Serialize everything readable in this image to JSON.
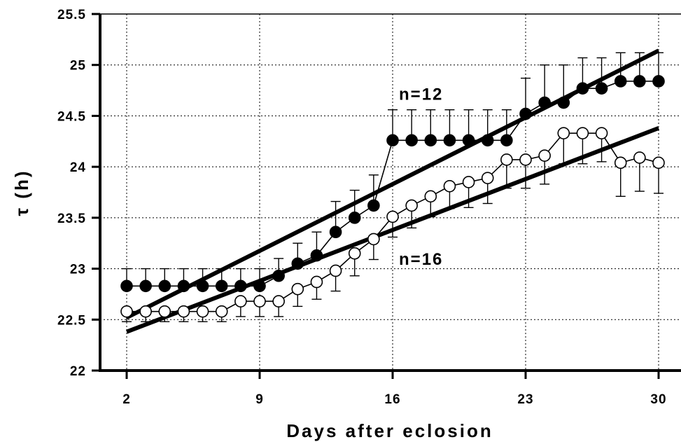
{
  "chart_data": {
    "type": "line",
    "title": "",
    "xlabel": "Days after eclosion",
    "ylabel": "τ (h)",
    "xlim": [
      0,
      32
    ],
    "ylim": [
      22,
      25.5
    ],
    "x_ticks": [
      2,
      9,
      16,
      23,
      30
    ],
    "x_tick_labels": [
      "2",
      "9",
      "16",
      "23",
      "30"
    ],
    "y_ticks": [
      22,
      22.5,
      23,
      23.5,
      24,
      24.5,
      25,
      25.5
    ],
    "y_tick_labels": [
      "22",
      "22.5",
      "23",
      "23.5",
      "24",
      "24.5",
      "25",
      "25.5"
    ],
    "grid": true,
    "annotations": [
      {
        "text": "n=12",
        "x": 17.5,
        "y": 24.72
      },
      {
        "text": "n=16",
        "x": 17.5,
        "y": 23.1
      }
    ],
    "series": [
      {
        "marker": "filled-circle",
        "x": [
          2,
          3,
          4,
          5,
          6,
          7,
          8,
          9,
          10,
          11,
          12,
          13,
          14,
          15,
          16,
          17,
          18,
          19,
          20,
          21,
          22,
          23,
          24,
          25,
          26,
          27,
          28,
          29,
          30
        ],
        "values": [
          22.83,
          22.83,
          22.83,
          22.83,
          22.83,
          22.83,
          22.83,
          22.83,
          22.93,
          23.05,
          23.13,
          23.36,
          23.5,
          23.62,
          24.26,
          24.26,
          24.26,
          24.26,
          24.26,
          24.26,
          24.26,
          24.52,
          24.63,
          24.63,
          24.77,
          24.77,
          24.84,
          24.84,
          24.84
        ],
        "error_upper": [
          0.17,
          0.17,
          0.17,
          0.17,
          0.17,
          0.17,
          0.17,
          0.17,
          0.17,
          0.2,
          0.23,
          0.3,
          0.27,
          0.3,
          0.3,
          0.3,
          0.3,
          0.3,
          0.3,
          0.3,
          0.3,
          0.35,
          0.37,
          0.37,
          0.3,
          0.3,
          0.28,
          0.28,
          0.28
        ]
      },
      {
        "marker": "open-circle",
        "x": [
          2,
          3,
          4,
          5,
          6,
          7,
          8,
          9,
          10,
          11,
          12,
          13,
          14,
          15,
          16,
          17,
          18,
          19,
          20,
          21,
          22,
          23,
          24,
          25,
          26,
          27,
          28,
          29,
          30
        ],
        "values": [
          22.58,
          22.58,
          22.58,
          22.58,
          22.58,
          22.58,
          22.68,
          22.68,
          22.68,
          22.8,
          22.87,
          22.98,
          23.15,
          23.29,
          23.51,
          23.62,
          23.71,
          23.81,
          23.85,
          23.89,
          24.07,
          24.07,
          24.11,
          24.33,
          24.33,
          24.33,
          24.04,
          24.09,
          24.04
        ],
        "error_lower": [
          0.1,
          0.1,
          0.1,
          0.1,
          0.1,
          0.1,
          0.15,
          0.15,
          0.15,
          0.17,
          0.17,
          0.2,
          0.22,
          0.2,
          0.2,
          0.22,
          0.2,
          0.22,
          0.25,
          0.25,
          0.28,
          0.28,
          0.28,
          0.3,
          0.3,
          0.28,
          0.33,
          0.33,
          0.3
        ]
      }
    ],
    "trend_lines": [
      {
        "x": [
          2,
          30
        ],
        "y": [
          22.52,
          25.14
        ]
      },
      {
        "x": [
          2,
          30
        ],
        "y": [
          22.38,
          24.38
        ]
      }
    ]
  }
}
